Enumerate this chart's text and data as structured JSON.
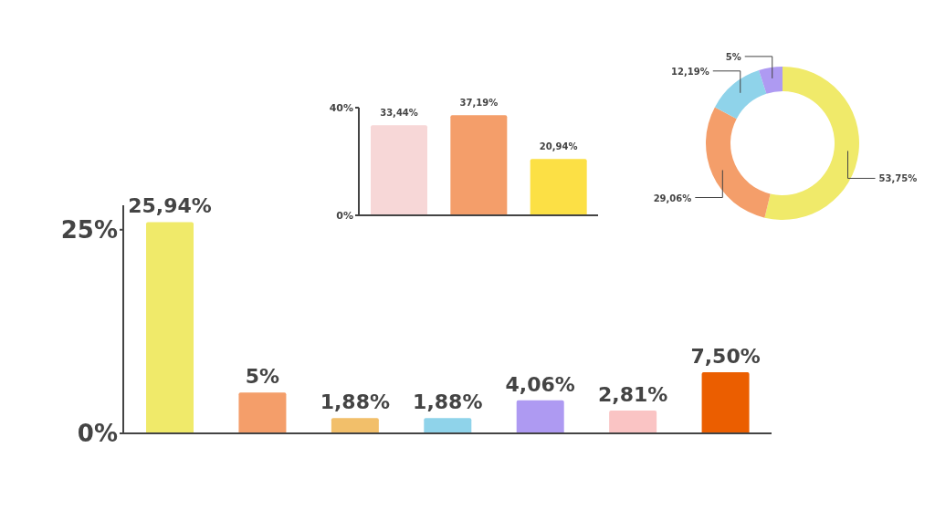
{
  "chart_data": [
    {
      "type": "bar",
      "categories": [
        null,
        null,
        null,
        null,
        null,
        null,
        null
      ],
      "values": [
        25.94,
        5,
        1.88,
        1.88,
        4.06,
        2.81,
        7.5
      ],
      "colors": [
        "#f0ea6a",
        "#f49e6a",
        "#f2bf6a",
        "#8fd3ea",
        "#ae9af2",
        "#fac4c4",
        "#eb5e00"
      ],
      "value_labels": [
        "25,94%",
        "5%",
        "1,88%",
        "1,88%",
        "4,06%",
        "2,81%",
        "7,50%"
      ],
      "ylim": [
        0,
        28
      ],
      "yticks": [
        {
          "value": 0,
          "label": "0%"
        },
        {
          "value": 25,
          "label": "25%"
        }
      ],
      "tick_labels": "y",
      "grid": false
    },
    {
      "type": "bar",
      "categories": [
        null,
        null,
        null
      ],
      "values": [
        33.44,
        37.19,
        20.94
      ],
      "colors": [
        "#f7d7d7",
        "#f49e6a",
        "#fce045"
      ],
      "value_labels": [
        "33,44%",
        "37,19%",
        "20,94%"
      ],
      "ylim": [
        0,
        40
      ],
      "yticks": [
        {
          "value": 0,
          "label": "0%"
        },
        {
          "value": 40,
          "label": "40%"
        }
      ],
      "tick_labels": "y",
      "grid": false
    },
    {
      "type": "donut",
      "categories": [
        null,
        null,
        null,
        null
      ],
      "values": [
        53.75,
        29.06,
        12.19,
        5
      ],
      "colors": [
        "#f0ea6a",
        "#f49e6a",
        "#8fd3ea",
        "#ae9af2"
      ],
      "value_labels": [
        "53,75%",
        "29,06%",
        "12,19%",
        "5%"
      ]
    }
  ]
}
